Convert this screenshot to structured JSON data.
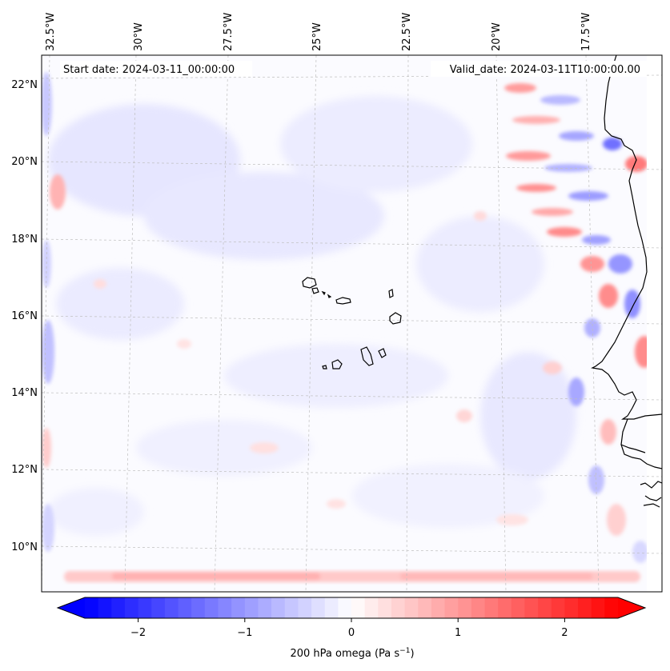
{
  "map": {
    "start_label": "Start date: 2024-03-11_00:00:00",
    "valid_label": "Valid_date: 2024-03-11T10:00:00.00",
    "lon_labels": [
      "32.5°W",
      "30°W",
      "27.5°W",
      "25°W",
      "22.5°W",
      "20°W",
      "17.5°W"
    ],
    "lat_labels": [
      "22°N",
      "20°N",
      "18°N",
      "16°N",
      "14°N",
      "12°N",
      "10°N"
    ],
    "lon_values": [
      -32.5,
      -30,
      -27.5,
      -25,
      -22.5,
      -20,
      -17.5
    ],
    "lat_values": [
      22,
      20,
      18,
      16,
      14,
      12,
      10
    ]
  },
  "colorbar": {
    "label_text": "200 hPa omega (Pa s",
    "label_sup": "−1",
    "label_close": ")",
    "tick_labels": [
      "−2",
      "−1",
      "0",
      "1",
      "2"
    ],
    "tick_values": [
      -2,
      -1,
      0,
      1,
      2
    ],
    "vmin": -2.5,
    "vmax": 2.5,
    "levels": 40,
    "colormap": "bwr",
    "color_low": "#0000ff",
    "color_mid": "#ffffff",
    "color_high": "#ff0000"
  }
}
